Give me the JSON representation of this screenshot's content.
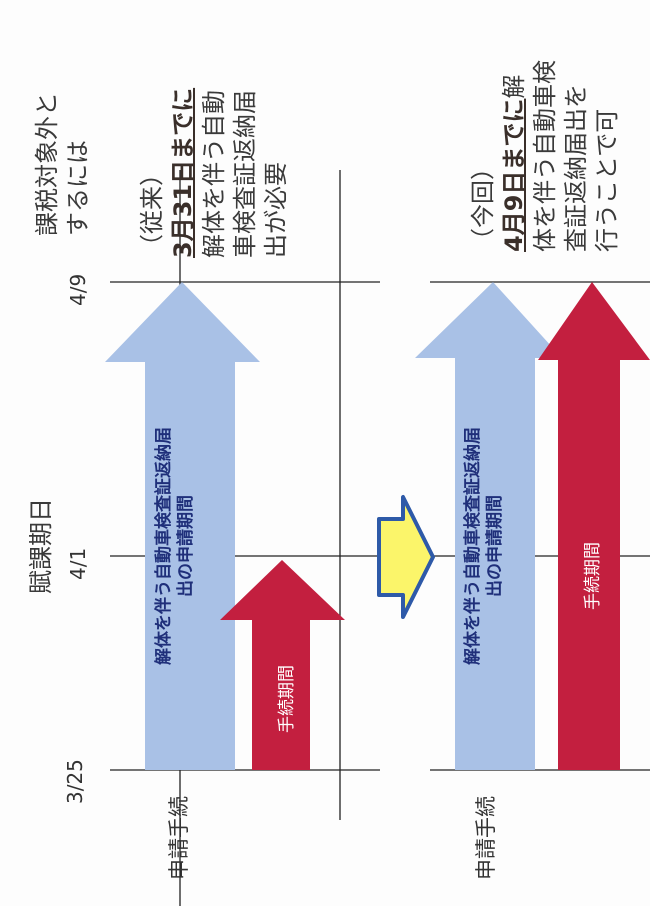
{
  "header": {
    "axis_title": "賦課期日",
    "conclusion_title_line1": "課税対象外と",
    "conclusion_title_line2": "するには"
  },
  "ticks": {
    "start": "3/25",
    "mid": "4/1",
    "end": "4/9"
  },
  "previous": {
    "row_label": "申請手続",
    "blue_arrow_line1": "解体を伴う自動車検査証返納届",
    "blue_arrow_line2": "出の申請期間",
    "red_arrow": "手続期間",
    "note_tag": "（従来）",
    "note_emph": "3月31日までに",
    "note_line1": "解体を伴う自動",
    "note_line2": "車検査証返納届",
    "note_line3": "出が必要"
  },
  "current": {
    "row_label": "申請手続",
    "blue_arrow_line1": "解体を伴う自動車検査証返納届",
    "blue_arrow_line2": "出の申請期間",
    "red_arrow": "手続期間",
    "note_tag": "（今回）",
    "note_emph": "4月9日までに",
    "note_emph_tail": "解",
    "note_line1": "体を伴う自動車検",
    "note_line2": "査証返納届出を",
    "note_line3": "行うことで可"
  },
  "colors": {
    "blue_arrow": "#a9c1e6",
    "red_arrow": "#c31f3f",
    "transition_arrow_fill": "#fbf56a",
    "transition_arrow_stroke": "#2e5aa8"
  }
}
